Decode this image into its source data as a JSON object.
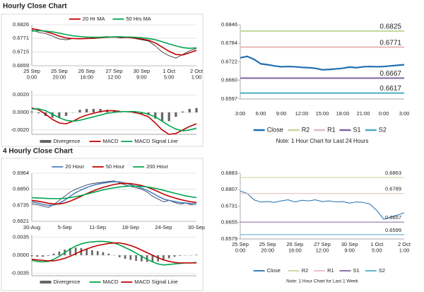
{
  "headings": [
    "Hourly Close Chart",
    "4 Hourly Close Chart"
  ],
  "chart_data": [
    {
      "type": "line",
      "ylim": [
        0.6659,
        0.6826
      ],
      "yticks": [
        0.6826,
        0.6771,
        0.6715,
        0.6659
      ],
      "grid": true,
      "legend": "top",
      "categories": [
        "25 Sep\n0:00",
        null,
        null,
        null,
        "25 Sep\n20:00",
        null,
        null,
        null,
        "26 Sep\n16:00",
        null,
        null,
        null,
        "27 Sep\n12:00",
        null,
        null,
        null,
        "30 Sep\n9:00",
        null,
        null,
        null,
        "1 Oct\n5:00",
        null,
        null,
        null,
        "2 Oct\n1:00"
      ],
      "series": [
        {
          "color": "#222222",
          "values": [
            0.6805,
            0.6795,
            0.679,
            0.678,
            0.6768,
            0.6765,
            0.677,
            0.6768,
            0.6772,
            0.677,
            0.6775,
            0.6778,
            0.6776,
            0.6772,
            0.6775,
            0.677,
            0.6765,
            0.676,
            0.674,
            0.6715,
            0.67,
            0.669,
            0.6705,
            0.672,
            0.673
          ]
        },
        {
          "name": "20 Hr MA",
          "color": "#c00000",
          "values": [
            0.681,
            0.6805,
            0.6798,
            0.679,
            0.678,
            0.6772,
            0.677,
            0.6769,
            0.677,
            0.6771,
            0.6773,
            0.6775,
            0.6776,
            0.6775,
            0.6774,
            0.6772,
            0.6768,
            0.6763,
            0.6752,
            0.6735,
            0.6718,
            0.6705,
            0.6703,
            0.6712,
            0.6722
          ]
        },
        {
          "name": "50 Hrs MA",
          "color": "#00a650",
          "values": [
            0.68,
            0.6802,
            0.68,
            0.6797,
            0.6792,
            0.6786,
            0.6781,
            0.6778,
            0.6776,
            0.6775,
            0.6775,
            0.6776,
            0.6777,
            0.6777,
            0.6776,
            0.6775,
            0.6773,
            0.677,
            0.6765,
            0.6757,
            0.6748,
            0.674,
            0.6733,
            0.673,
            0.6732
          ]
        }
      ]
    },
    {
      "type": "macd",
      "ylim": [
        -0.0025,
        0.0025
      ],
      "yticks": [
        {
          "value": 0.002,
          "label": "0.0020"
        },
        {
          "value": 0,
          "label": "0.0000"
        },
        {
          "value": -0.002,
          "label": "-0.0020"
        }
      ],
      "grid": true,
      "legend": "bottom",
      "series": [
        {
          "name": "Divergence",
          "type": "bar",
          "color": "#666666",
          "values": [
            0.0001,
            -0.0001,
            -0.0004,
            -0.0006,
            -0.0006,
            -0.0004,
            0.0,
            0.0003,
            0.0004,
            0.0004,
            0.0004,
            0.0003,
            0.0002,
            0.0,
            0.0,
            -0.0001,
            -0.0002,
            -0.0003,
            -0.0007,
            -0.001,
            -0.001,
            -0.0005,
            0.0001,
            0.0004,
            0.0005
          ]
        },
        {
          "name": "MACD",
          "color": "#c00000",
          "values": [
            0.0005,
            0.0003,
            -0.0002,
            -0.0008,
            -0.0012,
            -0.0013,
            -0.001,
            -0.0006,
            -0.0003,
            -0.0001,
            0.0001,
            0.0002,
            0.0002,
            0.0001,
            0.0001,
            0.0,
            -0.0002,
            -0.0005,
            -0.0012,
            -0.002,
            -0.0025,
            -0.0024,
            -0.002,
            -0.0016,
            -0.0013
          ]
        },
        {
          "name": "MACD Signal Line",
          "color": "#00a650",
          "values": [
            0.0004,
            0.0004,
            0.0002,
            -0.0002,
            -0.0006,
            -0.0009,
            -0.001,
            -0.0009,
            -0.0007,
            -0.0005,
            -0.0003,
            -0.0001,
            0.0,
            0.0001,
            0.0001,
            0.0001,
            0.0,
            -0.0002,
            -0.0005,
            -0.001,
            -0.0015,
            -0.0019,
            -0.0021,
            -0.002,
            -0.0018
          ]
        }
      ]
    },
    {
      "type": "levels",
      "ylim": [
        0.6597,
        0.6846
      ],
      "yticks": [
        0.6846,
        0.6784,
        0.6722,
        {
          "value": 0.666,
          "label": "0.6660"
        },
        0.6597
      ],
      "grid": false,
      "legend": "bottom",
      "note": "Note: 1 Hour Chart for Last 24 Hours",
      "categories": [
        "3:00",
        null,
        null,
        "6:00",
        null,
        null,
        "9:00",
        null,
        null,
        "12:00",
        null,
        null,
        "15:00",
        null,
        null,
        "18:00",
        null,
        null,
        "21:00",
        null,
        null,
        "0:00",
        null,
        null,
        "3:00"
      ],
      "series": [
        {
          "name": "Close",
          "color": "#1f6fb2",
          "values": [
            0.6735,
            0.674,
            0.673,
            0.6715,
            0.6712,
            0.6708,
            0.6705,
            0.6706,
            0.6705,
            0.6703,
            0.6702,
            0.67,
            0.6695,
            0.6696,
            0.6698,
            0.67,
            0.6704,
            0.6702,
            0.6705,
            0.6706,
            0.6705,
            0.6706,
            0.6708,
            0.671,
            0.6712
          ]
        },
        {
          "name": "R2",
          "color": "#c3d69b",
          "level": 0.6825
        },
        {
          "name": "R1",
          "color": "#e6b9b8",
          "level": 0.6771
        },
        {
          "name": "S1",
          "color": "#8064a2",
          "level": 0.6667
        },
        {
          "name": "S2",
          "color": "#4bacc6",
          "level": 0.6617
        }
      ]
    },
    {
      "type": "line",
      "ylim": [
        0.6621,
        0.6964
      ],
      "yticks": [
        0.6964,
        {
          "value": 0.685,
          "label": "0.6850"
        },
        0.6735,
        0.6621
      ],
      "grid": true,
      "legend": "top",
      "categories": [
        "30-Aug",
        null,
        null,
        null,
        null,
        null,
        "5-Sep",
        null,
        null,
        null,
        null,
        null,
        "11-Sep",
        null,
        null,
        null,
        null,
        null,
        "18-Sep",
        null,
        null,
        null,
        null,
        null,
        "24-Sep",
        null,
        null,
        null,
        null,
        null,
        "30-Sep"
      ],
      "series": [
        {
          "color": "#1a2a4a",
          "values": [
            0.6745,
            0.674,
            0.673,
            0.672,
            0.674,
            0.677,
            0.68,
            0.683,
            0.685,
            0.6865,
            0.688,
            0.689,
            0.6895,
            0.69,
            0.6905,
            0.691,
            0.6895,
            0.688,
            0.687,
            0.686,
            0.685,
            0.683,
            0.68,
            0.678,
            0.676,
            0.677,
            0.6755,
            0.6745,
            0.675,
            0.674,
            0.6745
          ]
        },
        {
          "name": "20 Hour",
          "color": "#4f81bd",
          "values": [
            0.676,
            0.6752,
            0.6742,
            0.6735,
            0.6737,
            0.675,
            0.6772,
            0.68,
            0.6825,
            0.6845,
            0.6862,
            0.6876,
            0.6886,
            0.6893,
            0.6899,
            0.6904,
            0.6902,
            0.6893,
            0.6882,
            0.687,
            0.6858,
            0.6842,
            0.6822,
            0.68,
            0.678,
            0.677,
            0.6763,
            0.6755,
            0.6752,
            0.6747,
            0.6745
          ]
        },
        {
          "name": "50 Hour",
          "color": "#c00000",
          "values": [
            0.677,
            0.6765,
            0.6758,
            0.675,
            0.6745,
            0.6745,
            0.6752,
            0.6765,
            0.6782,
            0.68,
            0.6818,
            0.6835,
            0.685,
            0.6863,
            0.6874,
            0.6884,
            0.689,
            0.6892,
            0.689,
            0.6884,
            0.6876,
            0.6865,
            0.685,
            0.6833,
            0.6815,
            0.68,
            0.6788,
            0.6777,
            0.6768,
            0.676,
            0.6755
          ]
        },
        {
          "name": "200 Hour",
          "color": "#00a650",
          "values": [
            0.679,
            0.6788,
            0.6786,
            0.6784,
            0.6783,
            0.6783,
            0.6785,
            0.679,
            0.6797,
            0.6805,
            0.6815,
            0.6825,
            0.6835,
            0.6845,
            0.6853,
            0.686,
            0.6866,
            0.687,
            0.6872,
            0.6872,
            0.687,
            0.6866,
            0.686,
            0.6852,
            0.6842,
            0.6832,
            0.6822,
            0.6812,
            0.6803,
            0.6796,
            0.679
          ]
        }
      ]
    },
    {
      "type": "macd",
      "ylim": [
        -0.004,
        0.004
      ],
      "yticks": [
        {
          "value": 0.0035,
          "label": "0.0035"
        },
        {
          "value": 0,
          "label": "0.0000"
        },
        {
          "value": -0.0035,
          "label": "-0.0035"
        }
      ],
      "grid": true,
      "legend": "bottom",
      "series": [
        {
          "name": "Divergence",
          "type": "bar",
          "color": "#666666",
          "values": [
            -0.0002,
            -0.0003,
            -0.0003,
            -0.0001,
            0.0003,
            0.0007,
            0.0011,
            0.0014,
            0.0015,
            0.0014,
            0.0013,
            0.001,
            0.0008,
            0.0006,
            0.0003,
            0.0,
            -0.0004,
            -0.0007,
            -0.0009,
            -0.0011,
            -0.0012,
            -0.0013,
            -0.0013,
            -0.0012,
            -0.001,
            -0.0006,
            -0.0003,
            -0.0001,
            0.0,
            0.0,
            0.0001
          ]
        },
        {
          "name": "MACD",
          "color": "#00a650",
          "values": [
            -0.001,
            -0.0012,
            -0.0013,
            -0.0012,
            -0.0008,
            -0.0002,
            0.0005,
            0.0012,
            0.0018,
            0.0022,
            0.0025,
            0.0026,
            0.0027,
            0.0027,
            0.0026,
            0.0024,
            0.002,
            0.0015,
            0.001,
            0.0004,
            -0.0002,
            -0.0008,
            -0.0013,
            -0.0017,
            -0.0019,
            -0.0018,
            -0.0017,
            -0.0016,
            -0.0015,
            -0.0015,
            -0.0014
          ]
        },
        {
          "name": "MACD Signal Line",
          "color": "#c00000",
          "values": [
            -0.0008,
            -0.0009,
            -0.001,
            -0.0011,
            -0.0011,
            -0.0009,
            -0.0006,
            -0.0002,
            0.0003,
            0.0008,
            0.0012,
            0.0016,
            0.0019,
            0.0021,
            0.0023,
            0.0024,
            0.0024,
            0.0022,
            0.0019,
            0.0015,
            0.001,
            0.0005,
            0.0,
            -0.0005,
            -0.0009,
            -0.0012,
            -0.0014,
            -0.0015,
            -0.0015,
            -0.0015,
            -0.0015
          ]
        }
      ]
    },
    {
      "type": "levels",
      "ylim": [
        0.6579,
        0.6883
      ],
      "yticks": [
        0.6883,
        0.6807,
        0.6731,
        0.6655,
        0.6579
      ],
      "grid": false,
      "legend": "bottom",
      "thin": true,
      "note": "Note: 1 Hour Chart for Last 1 Week",
      "categories": [
        "25 Sep\n0:00",
        null,
        null,
        null,
        "25 Sep\n20:00",
        null,
        null,
        null,
        "26 Sep\n16:00",
        null,
        null,
        null,
        "27 Sep\n12:00",
        null,
        null,
        null,
        "30 Sep\n9:00",
        null,
        null,
        null,
        "1 Oct\n5:00",
        null,
        null,
        null,
        "2 Oct\n1:00"
      ],
      "series": [
        {
          "name": "Close",
          "color": "#1f6fb2",
          "values": [
            0.68,
            0.679,
            0.676,
            0.675,
            0.6752,
            0.6748,
            0.6755,
            0.676,
            0.675,
            0.6758,
            0.6755,
            0.676,
            0.6752,
            0.6755,
            0.675,
            0.6752,
            0.6745,
            0.675,
            0.6748,
            0.674,
            0.671,
            0.667,
            0.668,
            0.669,
            0.67
          ]
        },
        {
          "name": "R2",
          "color": "#c3d69b",
          "level": 0.6863
        },
        {
          "name": "R1",
          "color": "#e6b9b8",
          "level": 0.6789
        },
        {
          "name": "S1",
          "color": "#8064a2",
          "level": 0.6657
        },
        {
          "name": "S2",
          "color": "#4bacc6",
          "level": 0.6599
        }
      ]
    }
  ]
}
